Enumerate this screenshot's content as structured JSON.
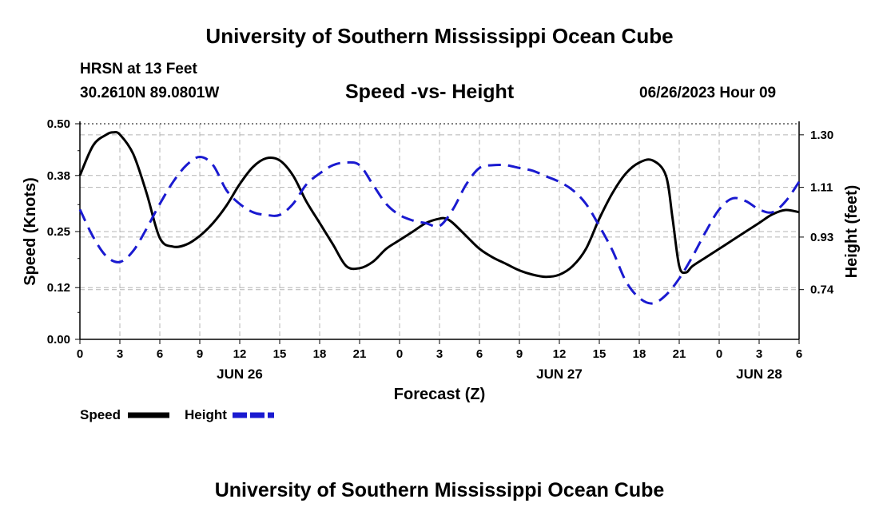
{
  "page": {
    "title_top": "University of Southern Mississippi Ocean Cube",
    "title_bottom": "University of Southern Mississippi Ocean Cube",
    "station": "HRSN at 13 Feet",
    "coords": "30.2610N  89.0801W",
    "subtitle": "Speed -vs- Height",
    "datetime": "06/26/2023 Hour 09"
  },
  "colors": {
    "speed": "#000000",
    "height": "#1a1ad0",
    "grid": "#b4b4b4"
  },
  "chart_data": {
    "type": "line",
    "title": "Speed -vs- Height",
    "xlabel": "Forecast (Z)",
    "ylabel": "Speed (Knots)",
    "y2label": "Height (feet)",
    "xlim": [
      0,
      54
    ],
    "ylim": [
      0,
      0.5
    ],
    "y2lim": [
      0.56,
      1.34
    ],
    "yticks": [
      "0.00",
      "0.12",
      "0.25",
      "0.38",
      "0.50"
    ],
    "yticks_values": [
      0.0,
      0.12,
      0.25,
      0.38,
      0.5
    ],
    "y2ticks": [
      "0.74",
      "0.93",
      "1.11",
      "1.30"
    ],
    "y2ticks_values": [
      0.74,
      0.93,
      1.11,
      1.3
    ],
    "xticks": [
      "0",
      "3",
      "6",
      "9",
      "12",
      "15",
      "18",
      "21",
      "0",
      "3",
      "6",
      "9",
      "12",
      "15",
      "18",
      "21",
      "0",
      "3",
      "6"
    ],
    "date_labels": [
      {
        "label": "JUN 26",
        "hour": 12
      },
      {
        "label": "JUN 27",
        "hour": 36
      },
      {
        "label": "JUN 28",
        "hour": 51
      }
    ],
    "legend": [
      {
        "name": "Speed",
        "style": "solid"
      },
      {
        "name": "Height",
        "style": "dashed"
      }
    ],
    "series": [
      {
        "name": "Speed",
        "axis": "left",
        "x": [
          0,
          1,
          2,
          2.5,
          3,
          4,
          5,
          6,
          7,
          8,
          9,
          10,
          11,
          12,
          13,
          14,
          15,
          16,
          17,
          18,
          19,
          20,
          21,
          22,
          23,
          24,
          25,
          26,
          27,
          27.5,
          28,
          29,
          30,
          31,
          32,
          33,
          34,
          35,
          36,
          37,
          38,
          39,
          40,
          41,
          42,
          43,
          44,
          44.5,
          45,
          45.5,
          46,
          47,
          48,
          49,
          50,
          51,
          52,
          53,
          54
        ],
        "values": [
          0.38,
          0.45,
          0.475,
          0.48,
          0.475,
          0.43,
          0.34,
          0.235,
          0.215,
          0.22,
          0.24,
          0.27,
          0.31,
          0.36,
          0.4,
          0.42,
          0.415,
          0.38,
          0.32,
          0.27,
          0.22,
          0.17,
          0.165,
          0.18,
          0.21,
          0.23,
          0.25,
          0.27,
          0.28,
          0.28,
          0.27,
          0.24,
          0.21,
          0.19,
          0.175,
          0.16,
          0.15,
          0.145,
          0.15,
          0.17,
          0.21,
          0.28,
          0.34,
          0.385,
          0.41,
          0.415,
          0.38,
          0.28,
          0.17,
          0.155,
          0.17,
          0.19,
          0.21,
          0.23,
          0.25,
          0.27,
          0.29,
          0.3,
          0.295
        ]
      },
      {
        "name": "Height",
        "axis": "right",
        "x": [
          0,
          1,
          2,
          3,
          4,
          5,
          6,
          7,
          8,
          9,
          10,
          11,
          12,
          13,
          14,
          15,
          16,
          17,
          18,
          19,
          20,
          21,
          22,
          23,
          24,
          25,
          26,
          27,
          28,
          29,
          30,
          31,
          32,
          33,
          34,
          35,
          36,
          37,
          38,
          39,
          40,
          41,
          42,
          43,
          44,
          45,
          46,
          47,
          48,
          49,
          50,
          51,
          52,
          53,
          54
        ],
        "values": [
          1.03,
          0.93,
          0.86,
          0.84,
          0.88,
          0.96,
          1.05,
          1.13,
          1.19,
          1.22,
          1.19,
          1.1,
          1.05,
          1.02,
          1.01,
          1.01,
          1.05,
          1.12,
          1.16,
          1.19,
          1.2,
          1.19,
          1.12,
          1.05,
          1.01,
          0.99,
          0.98,
          0.97,
          1.03,
          1.12,
          1.18,
          1.19,
          1.19,
          1.18,
          1.17,
          1.15,
          1.13,
          1.1,
          1.05,
          0.97,
          0.88,
          0.77,
          0.71,
          0.69,
          0.72,
          0.78,
          0.86,
          0.95,
          1.03,
          1.07,
          1.06,
          1.03,
          1.02,
          1.06,
          1.13
        ]
      }
    ]
  }
}
